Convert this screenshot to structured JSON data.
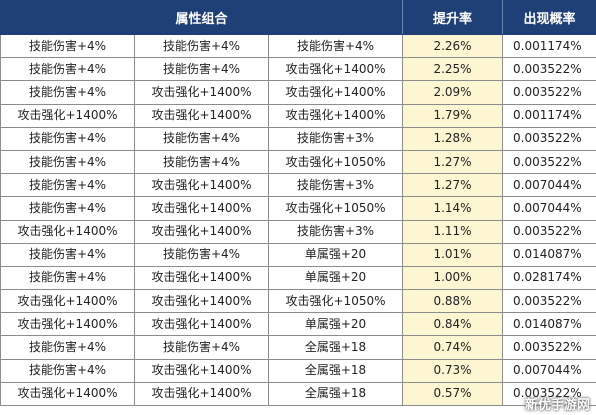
{
  "header": {
    "attr_combo": "属性组合",
    "boost_rate": "提升率",
    "probability": "出现概率"
  },
  "rows": [
    {
      "a1": "技能伤害+4%",
      "a2": "技能伤害+4%",
      "a3": "技能伤害+4%",
      "rate": "2.26%",
      "prob": "0.001174%"
    },
    {
      "a1": "技能伤害+4%",
      "a2": "技能伤害+4%",
      "a3": "攻击强化+1400%",
      "rate": "2.25%",
      "prob": "0.003522%"
    },
    {
      "a1": "技能伤害+4%",
      "a2": "攻击强化+1400%",
      "a3": "攻击强化+1400%",
      "rate": "2.09%",
      "prob": "0.003522%"
    },
    {
      "a1": "攻击强化+1400%",
      "a2": "攻击强化+1400%",
      "a3": "攻击强化+1400%",
      "rate": "1.79%",
      "prob": "0.001174%"
    },
    {
      "a1": "技能伤害+4%",
      "a2": "技能伤害+4%",
      "a3": "技能伤害+3%",
      "rate": "1.28%",
      "prob": "0.003522%"
    },
    {
      "a1": "技能伤害+4%",
      "a2": "技能伤害+4%",
      "a3": "攻击强化+1050%",
      "rate": "1.27%",
      "prob": "0.003522%"
    },
    {
      "a1": "技能伤害+4%",
      "a2": "攻击强化+1400%",
      "a3": "技能伤害+3%",
      "rate": "1.27%",
      "prob": "0.007044%"
    },
    {
      "a1": "技能伤害+4%",
      "a2": "攻击强化+1400%",
      "a3": "攻击强化+1050%",
      "rate": "1.14%",
      "prob": "0.007044%"
    },
    {
      "a1": "攻击强化+1400%",
      "a2": "攻击强化+1400%",
      "a3": "技能伤害+3%",
      "rate": "1.11%",
      "prob": "0.003522%"
    },
    {
      "a1": "技能伤害+4%",
      "a2": "技能伤害+4%",
      "a3": "单属强+20",
      "rate": "1.01%",
      "prob": "0.014087%"
    },
    {
      "a1": "技能伤害+4%",
      "a2": "攻击强化+1400%",
      "a3": "单属强+20",
      "rate": "1.00%",
      "prob": "0.028174%"
    },
    {
      "a1": "攻击强化+1400%",
      "a2": "攻击强化+1400%",
      "a3": "攻击强化+1050%",
      "rate": "0.88%",
      "prob": "0.003522%"
    },
    {
      "a1": "攻击强化+1400%",
      "a2": "攻击强化+1400%",
      "a3": "单属强+20",
      "rate": "0.84%",
      "prob": "0.014087%"
    },
    {
      "a1": "技能伤害+4%",
      "a2": "技能伤害+4%",
      "a3": "全属强+18",
      "rate": "0.74%",
      "prob": "0.003522%"
    },
    {
      "a1": "技能伤害+4%",
      "a2": "攻击强化+1400%",
      "a3": "全属强+18",
      "rate": "0.73%",
      "prob": "0.007044%"
    },
    {
      "a1": "攻击强化+1400%",
      "a2": "攻击强化+1400%",
      "a3": "全属强+18",
      "rate": "0.57%",
      "prob": "0.003522%"
    }
  ],
  "watermark": "新优手游网"
}
